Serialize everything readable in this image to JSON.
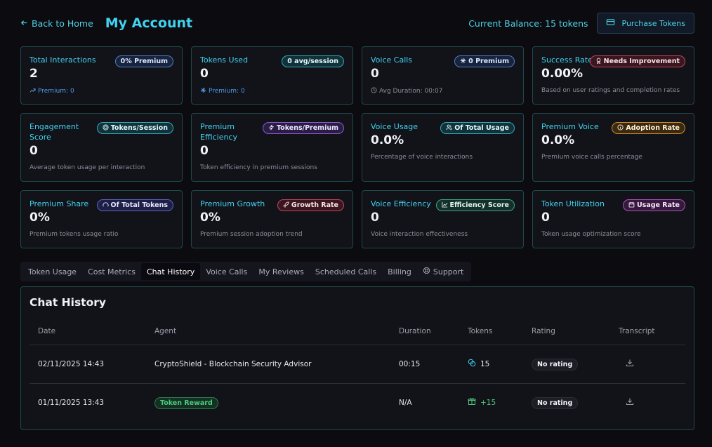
{
  "header": {
    "back_label": "Back to Home",
    "title": "My Account",
    "balance": "Current Balance: 15 tokens",
    "purchase_label": "Purchase Tokens"
  },
  "cards": [
    {
      "title": "Total Interactions",
      "value": "2",
      "badge": "0% Premium",
      "sub": "Premium: 0"
    },
    {
      "title": "Tokens Used",
      "value": "0",
      "badge": "0 avg/session",
      "sub": "Premium: 0"
    },
    {
      "title": "Voice Calls",
      "value": "0",
      "badge": "0 Premium",
      "sub": "Avg Duration: 00:07"
    },
    {
      "title": "Success Rate",
      "value": "0.00%",
      "badge": "Needs Improvement",
      "sub": "Based on user ratings and completion rates"
    },
    {
      "title": "Engagement Score",
      "value": "0",
      "badge": "Tokens/Session",
      "sub": "Average token usage per interaction"
    },
    {
      "title": "Premium Efficiency",
      "value": "0",
      "badge": "Tokens/Premium",
      "sub": "Token efficiency in premium sessions"
    },
    {
      "title": "Voice Usage",
      "value": "0.0%",
      "badge": "Of Total Usage",
      "sub": "Percentage of voice interactions"
    },
    {
      "title": "Premium Voice",
      "value": "0.0%",
      "badge": "Adoption Rate",
      "sub": "Premium voice calls percentage"
    },
    {
      "title": "Premium Share",
      "value": "0%",
      "badge": "Of Total Tokens",
      "sub": "Premium tokens usage ratio"
    },
    {
      "title": "Premium Growth",
      "value": "0%",
      "badge": "Growth Rate",
      "sub": "Premium session adoption trend"
    },
    {
      "title": "Voice Efficiency",
      "value": "0",
      "badge": "Efficiency Score",
      "sub": "Voice interaction effectiveness"
    },
    {
      "title": "Token Utilization",
      "value": "0",
      "badge": "Usage Rate",
      "sub": "Token usage optimization score"
    }
  ],
  "tabs": [
    "Token Usage",
    "Cost Metrics",
    "Chat History",
    "Voice Calls",
    "My Reviews",
    "Scheduled Calls",
    "Billing",
    "Support"
  ],
  "chat": {
    "title": "Chat History",
    "columns": [
      "Date",
      "Agent",
      "Duration",
      "Tokens",
      "Rating",
      "Transcript"
    ],
    "rows": [
      {
        "date": "02/11/2025 14:43",
        "agent": "CryptoShield - Blockchain Security Advisor",
        "duration": "00:15",
        "tokens": "15",
        "rating": "No rating"
      },
      {
        "date": "01/11/2025 13:43",
        "agent": "Token Reward",
        "duration": "N/A",
        "tokens": "+15",
        "rating": "No rating"
      }
    ]
  }
}
